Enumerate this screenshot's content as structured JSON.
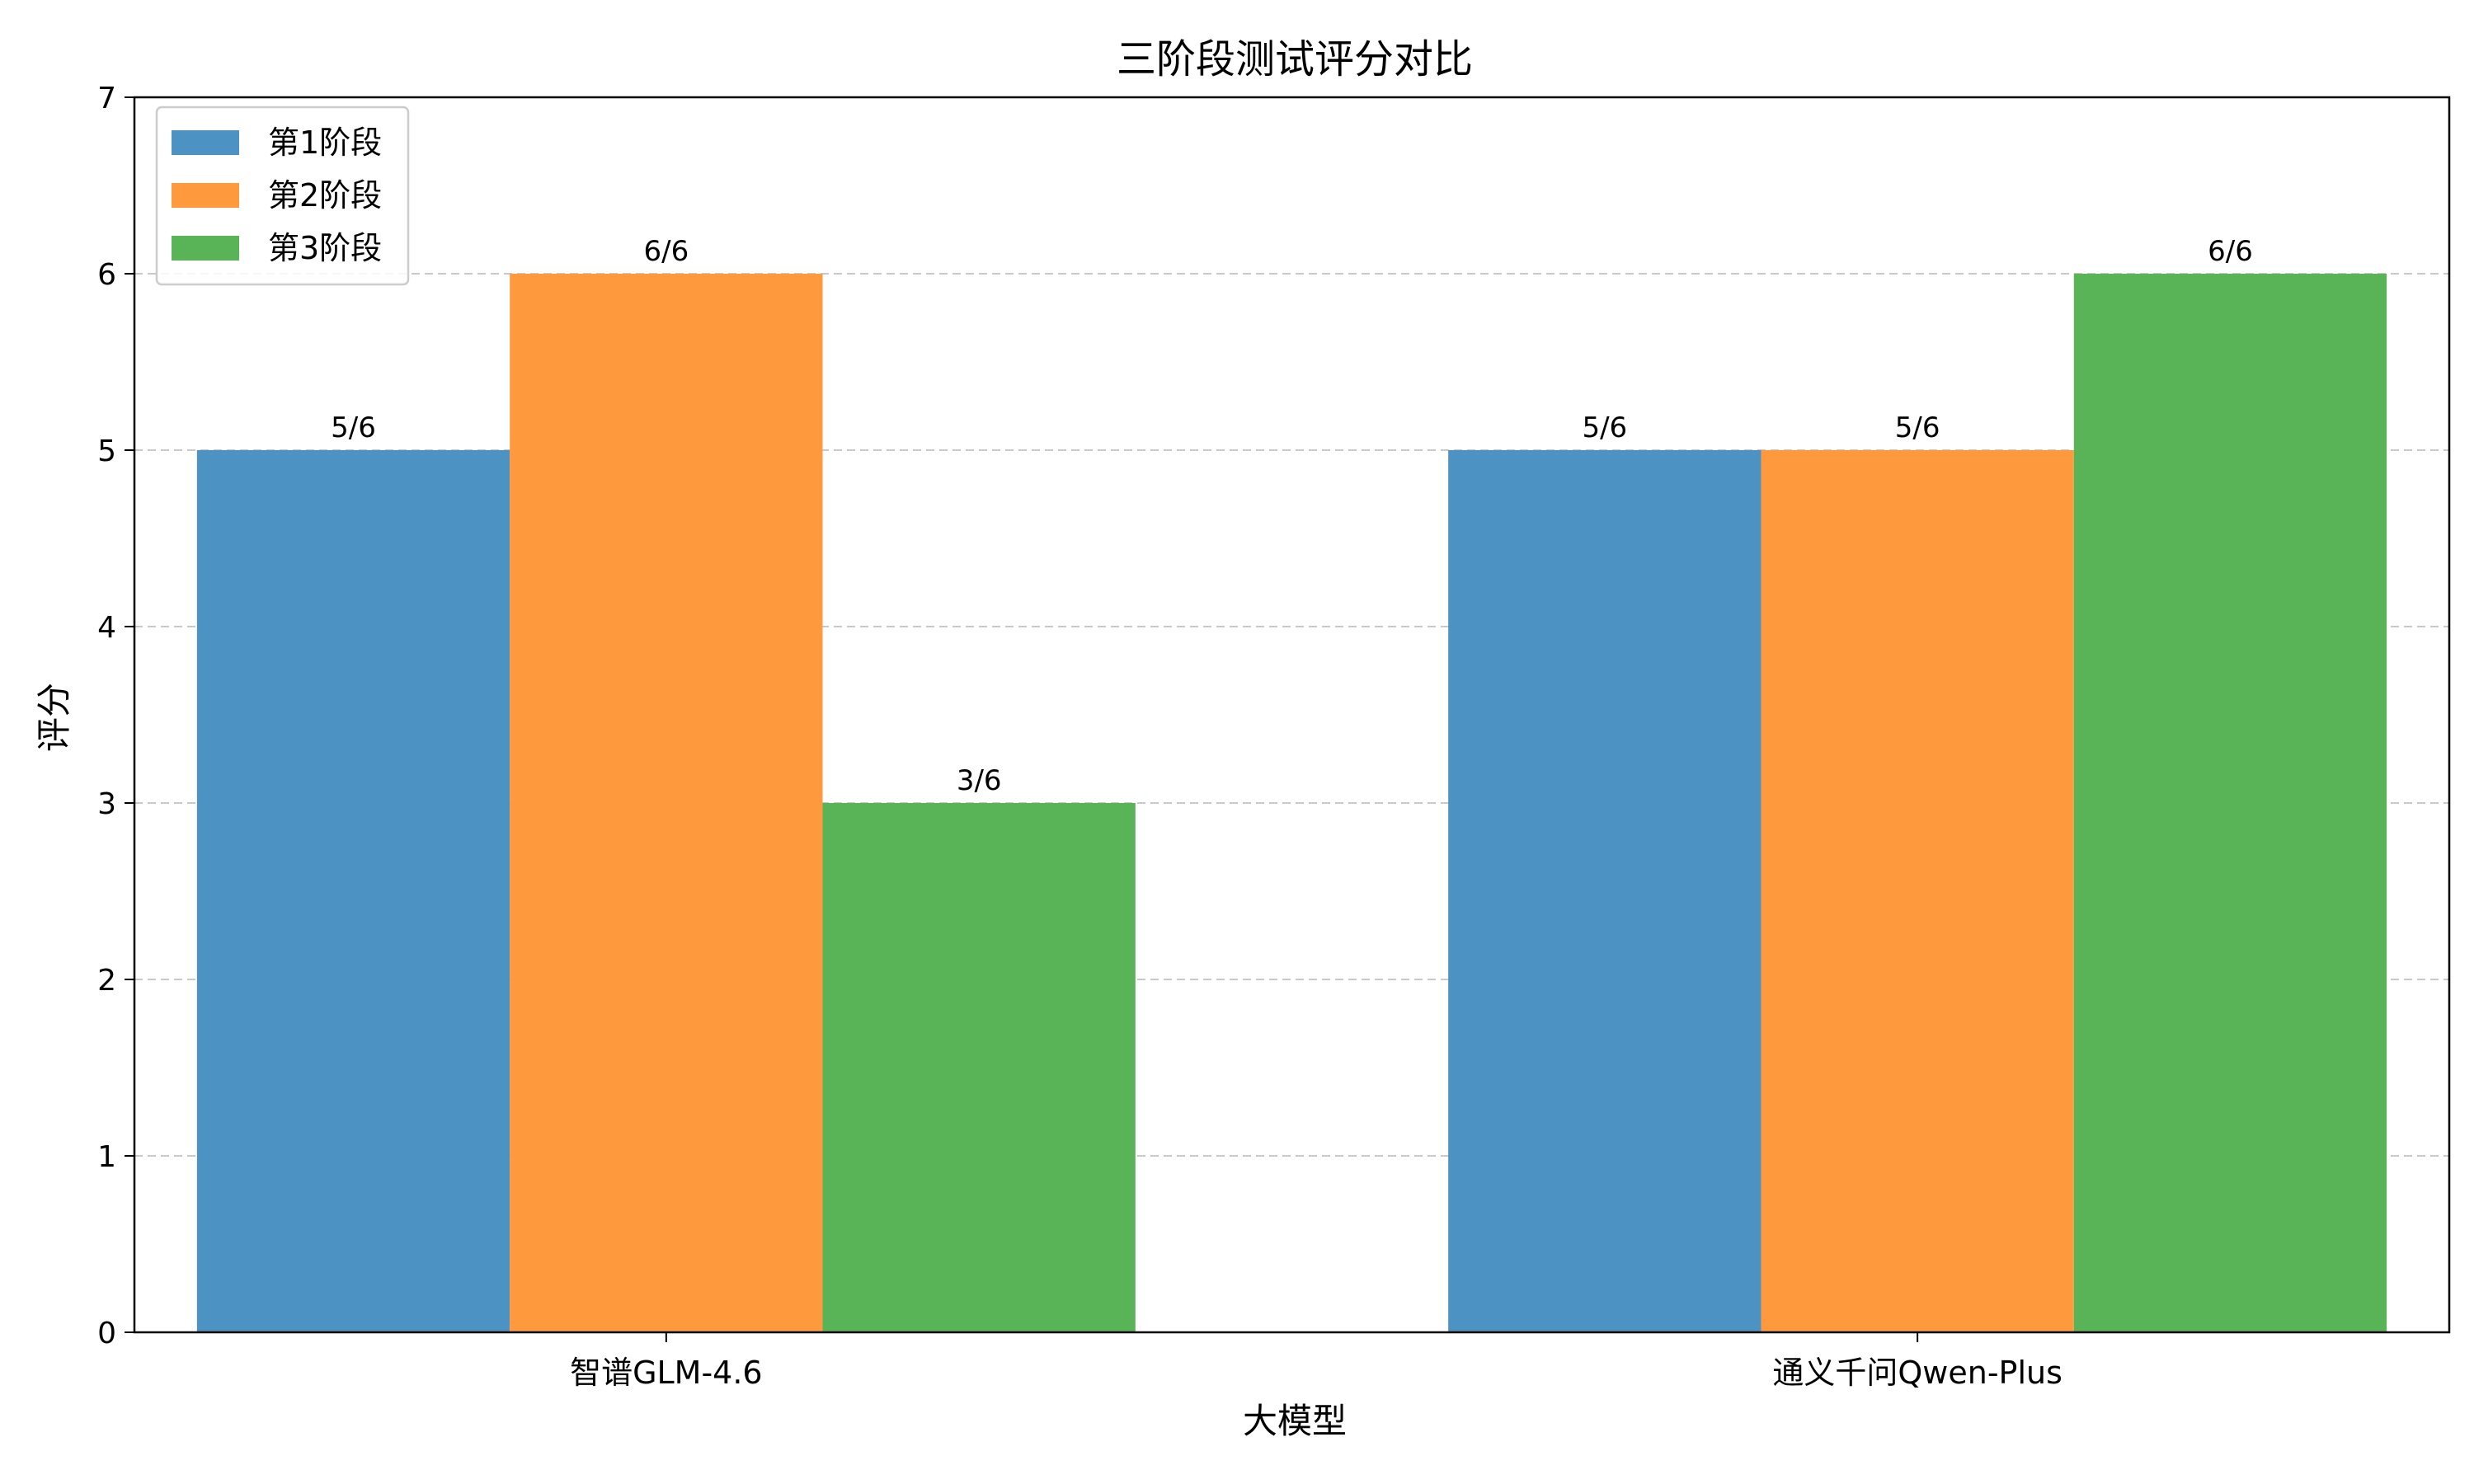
{
  "chart_data": {
    "type": "bar",
    "title": "三阶段测试评分对比",
    "xlabel": "大模型",
    "ylabel": "评分",
    "categories": [
      "智谱GLM-4.6",
      "通义千问Qwen-Plus"
    ],
    "series": [
      {
        "name": "第1阶段",
        "values": [
          5,
          5
        ],
        "labels": [
          "5/6",
          "5/6"
        ],
        "color": "#4c92c3"
      },
      {
        "name": "第2阶段",
        "values": [
          6,
          5
        ],
        "labels": [
          "6/6",
          "5/6"
        ],
        "color": "#ff993e"
      },
      {
        "name": "第3阶段",
        "values": [
          3,
          6
        ],
        "labels": [
          "3/6",
          "6/6"
        ],
        "color": "#59b357"
      }
    ],
    "ylim": [
      0,
      7
    ],
    "yticks": [
      "0",
      "1",
      "2",
      "3",
      "4",
      "5",
      "6",
      "7"
    ],
    "grid": {
      "axis": "y",
      "style": "dashed",
      "color": "#c8c8c8"
    },
    "legend": "top-left"
  }
}
